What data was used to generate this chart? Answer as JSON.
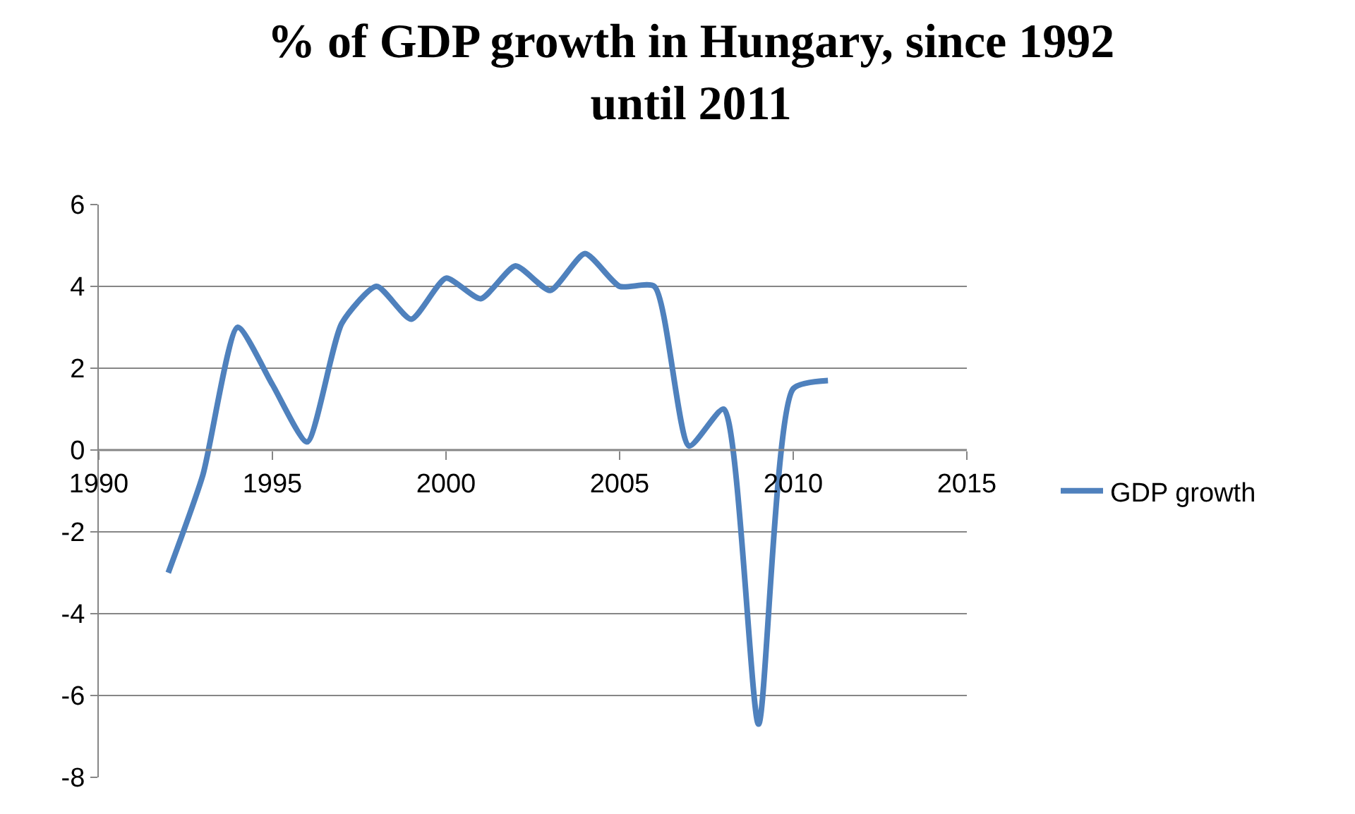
{
  "chart_data": {
    "type": "line",
    "title": "% of GDP growth in Hungary, since 1992\nuntil 2011",
    "x": [
      1992,
      1993,
      1994,
      1995,
      1996,
      1997,
      1998,
      1999,
      2000,
      2001,
      2002,
      2003,
      2004,
      2005,
      2006,
      2007,
      2008,
      2009,
      2010,
      2011
    ],
    "series": [
      {
        "name": "GDP growth",
        "color": "#4f81bd",
        "values": [
          -3.0,
          -0.6,
          3.0,
          1.6,
          0.2,
          3.1,
          4.0,
          3.2,
          4.2,
          3.7,
          4.5,
          3.9,
          4.8,
          4.0,
          4.0,
          0.1,
          1.0,
          -6.7,
          1.5,
          1.7
        ]
      }
    ],
    "xlim": [
      1990,
      2015
    ],
    "xticks": [
      1990,
      1995,
      2000,
      2005,
      2010,
      2015
    ],
    "ylim": [
      -8,
      6
    ],
    "yticks": [
      -8,
      -6,
      -4,
      -2,
      0,
      2,
      4,
      6
    ],
    "grid": "y",
    "legend": "right",
    "marker": "none",
    "line_style": "solid"
  }
}
